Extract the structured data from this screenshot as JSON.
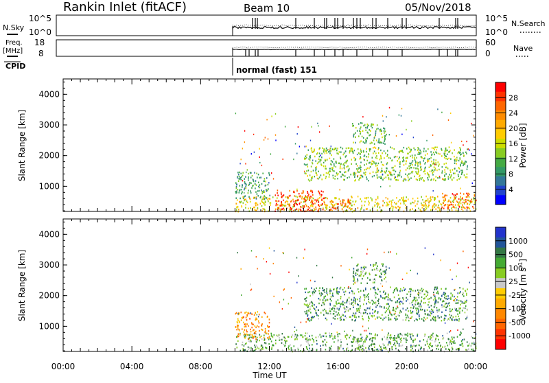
{
  "header": {
    "station": "Rankin Inlet (fitACF)",
    "beam": "Beam 10",
    "date": "05/Nov/2018"
  },
  "top_panels": {
    "nsky_label": "N.Sky",
    "nsearch_label": "N.Search",
    "noise_ticks_left": [
      "10^5",
      "10^0"
    ],
    "noise_ticks_right": [
      "10^5",
      "10^0"
    ],
    "freq_label_1": "Freq.",
    "freq_label_2": "[MHz]",
    "freq_ticks": [
      "18",
      "8"
    ],
    "nave_label": "Nave",
    "nave_ticks": [
      "60",
      "0"
    ],
    "cpid_label": "CPID",
    "cpid_value": "normal (fast) 151"
  },
  "chart_data": [
    {
      "type": "heatmap",
      "name": "power",
      "ylabel": "Slant Range [km]",
      "xlabel": "Time UT",
      "x_tick_labels": [
        "00:00",
        "04:00",
        "08:00",
        "12:00",
        "16:00",
        "20:00",
        "00:00"
      ],
      "xlim_hours": [
        0,
        24
      ],
      "ylim_km": [
        180,
        4500
      ],
      "y_tick_values": [
        1000,
        2000,
        3000,
        4000
      ],
      "y_tick_labels": [
        "1000",
        "2000",
        "3000",
        "4000"
      ],
      "data_start_hour": 10.0,
      "colorbar_label": "Power [dB]",
      "colorbar_ticks": [
        "28",
        "24",
        "20",
        "16",
        "12",
        "8",
        "4"
      ],
      "colorbar_colors": [
        "#ff0000",
        "#ff3300",
        "#ff6600",
        "#ff8c00",
        "#ffaa00",
        "#ffcc00",
        "#ccdd00",
        "#88cc22",
        "#44aa44",
        "#339966",
        "#337799",
        "#2244cc",
        "#0000ff"
      ],
      "regions": [
        {
          "h0": 10.0,
          "h1": 24.0,
          "r0": 200,
          "r1": 700,
          "level": 0.55
        },
        {
          "h0": 12.3,
          "h1": 15.2,
          "r0": 200,
          "r1": 900,
          "level": 0.9
        },
        {
          "h0": 15.5,
          "h1": 16.8,
          "r0": 200,
          "r1": 600,
          "level": 0.8
        },
        {
          "h0": 22.0,
          "h1": 24.0,
          "r0": 300,
          "r1": 800,
          "level": 0.85
        },
        {
          "h0": 14.0,
          "h1": 23.5,
          "r0": 1200,
          "r1": 2300,
          "level": 0.4
        },
        {
          "h0": 16.8,
          "h1": 18.8,
          "r0": 2400,
          "r1": 3100,
          "level": 0.35
        },
        {
          "h0": 10.0,
          "h1": 12.0,
          "r0": 600,
          "r1": 1500,
          "level": 0.3
        }
      ]
    },
    {
      "type": "heatmap",
      "name": "velocity",
      "ylabel": "Slant Range [km]",
      "xlabel": "Time UT",
      "x_tick_labels": [
        "00:00",
        "04:00",
        "08:00",
        "12:00",
        "16:00",
        "20:00",
        "00:00"
      ],
      "xlim_hours": [
        0,
        24
      ],
      "ylim_km": [
        180,
        4500
      ],
      "y_tick_values": [
        1000,
        2000,
        3000,
        4000
      ],
      "y_tick_labels": [
        "1000",
        "2000",
        "3000",
        "4000"
      ],
      "data_start_hour": 10.0,
      "colorbar_label": "Velocity [m s",
      "colorbar_label_sup": "-1",
      "colorbar_label_end": "]",
      "colorbar_ticks": [
        "1000",
        "500",
        "100",
        "25",
        "-25",
        "-100",
        "-500",
        "-1000"
      ],
      "colorbar_colors": [
        "#2233cc",
        "#225599",
        "#337744",
        "#44aa33",
        "#88cc22",
        "#c8c8c8",
        "#ffcc00",
        "#ffaa00",
        "#ff8800",
        "#ff6600",
        "#ff3300",
        "#ff0000"
      ],
      "regions": [
        {
          "h0": 10.0,
          "h1": 24.0,
          "r0": 200,
          "r1": 800,
          "level": 0.7
        },
        {
          "h0": 14.0,
          "h1": 23.5,
          "r0": 1200,
          "r1": 2300,
          "level": 0.75
        },
        {
          "h0": 16.8,
          "h1": 18.8,
          "r0": 2400,
          "r1": 3100,
          "level": 0.72
        },
        {
          "h0": 10.0,
          "h1": 12.0,
          "r0": 600,
          "r1": 1500,
          "level": 0.3
        }
      ]
    }
  ]
}
